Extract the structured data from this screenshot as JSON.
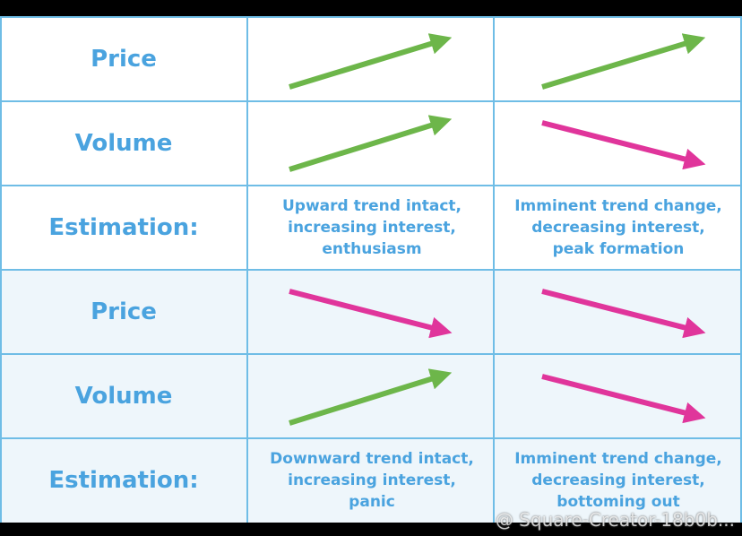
{
  "table": {
    "rows": [
      [
        "Price"
      ],
      [
        "Volume"
      ],
      [
        "Estimation:",
        [
          "Upward trend intact,",
          "increasing interest,",
          "enthusiasm"
        ],
        [
          "Imminent trend change,",
          "decreasing interest,",
          "peak formation"
        ]
      ],
      [
        "Price"
      ],
      [
        "Volume"
      ],
      [
        "Estimation:",
        [
          "Downward trend intact,",
          "increasing interest,",
          "panic"
        ],
        [
          "Imminent trend change,",
          "decreasing interest,",
          "bottoming out"
        ]
      ]
    ]
  },
  "watermark": "@ Square-Creator-18b0b..."
}
